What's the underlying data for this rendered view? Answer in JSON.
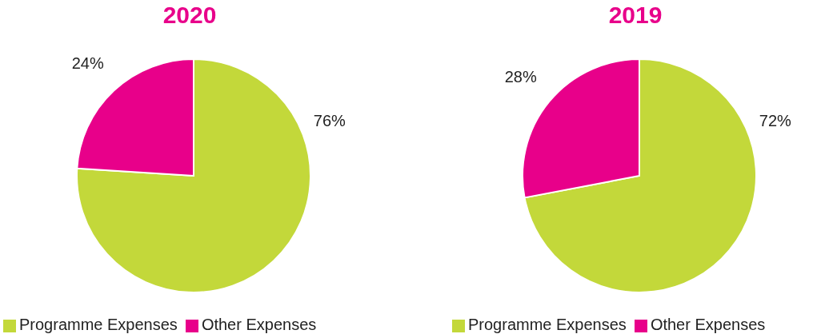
{
  "chart_data": [
    {
      "type": "pie",
      "title": "2020",
      "categories": [
        "Programme Expenses",
        "Other Expenses"
      ],
      "values": [
        76,
        24
      ],
      "colors": [
        "#c3d83a",
        "#e8008a"
      ],
      "value_labels": [
        "76%",
        "24%"
      ],
      "legend": "bottom left"
    },
    {
      "type": "pie",
      "title": "2019",
      "categories": [
        "Programme Expenses",
        "Other Expenses"
      ],
      "values": [
        72,
        28
      ],
      "colors": [
        "#c3d83a",
        "#e8008a"
      ],
      "value_labels": [
        "72%",
        "28%"
      ],
      "legend": "bottom left"
    }
  ]
}
